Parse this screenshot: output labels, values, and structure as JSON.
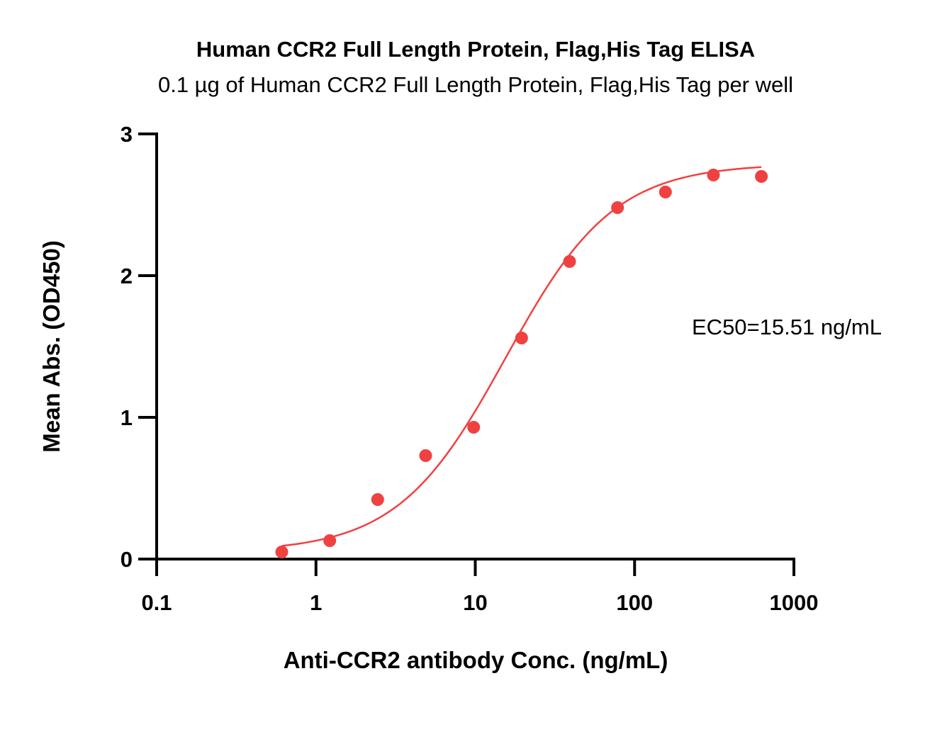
{
  "chart_data": {
    "type": "scatter",
    "title": "Human CCR2 Full Length Protein, Flag,His Tag ELISA",
    "subtitle": "0.1 µg of Human CCR2 Full Length Protein, Flag,His Tag per well",
    "xlabel": "Anti-CCR2 antibody Conc. (ng/mL)",
    "ylabel": "Mean Abs. (OD450)",
    "x_scale": "log",
    "xlim": [
      0.1,
      1000
    ],
    "ylim": [
      0,
      3
    ],
    "x_ticks": [
      "0.1",
      "1",
      "10",
      "100",
      "1000"
    ],
    "y_ticks": [
      "0",
      "1",
      "2",
      "3"
    ],
    "grid": false,
    "series": [
      {
        "x": [
          0.61,
          1.22,
          2.44,
          4.88,
          9.77,
          19.53,
          39.06,
          78.13,
          156.25,
          312.5,
          625
        ],
        "y": [
          0.05,
          0.13,
          0.42,
          0.73,
          0.93,
          1.56,
          2.1,
          2.48,
          2.59,
          2.71,
          2.7
        ],
        "color": "#f04141"
      }
    ],
    "fit_curve": {
      "model": "4PL",
      "bottom": 0.05,
      "top": 2.79,
      "ec50": 15.51,
      "hill": 1.28,
      "x_range": [
        0.61,
        625
      ],
      "color": "#f04141"
    },
    "annotations": [
      {
        "text": "EC50=15.51 ng/mL"
      }
    ],
    "colors": {
      "axis": "#000000",
      "point": "#f04141",
      "curve": "#f04141"
    }
  }
}
